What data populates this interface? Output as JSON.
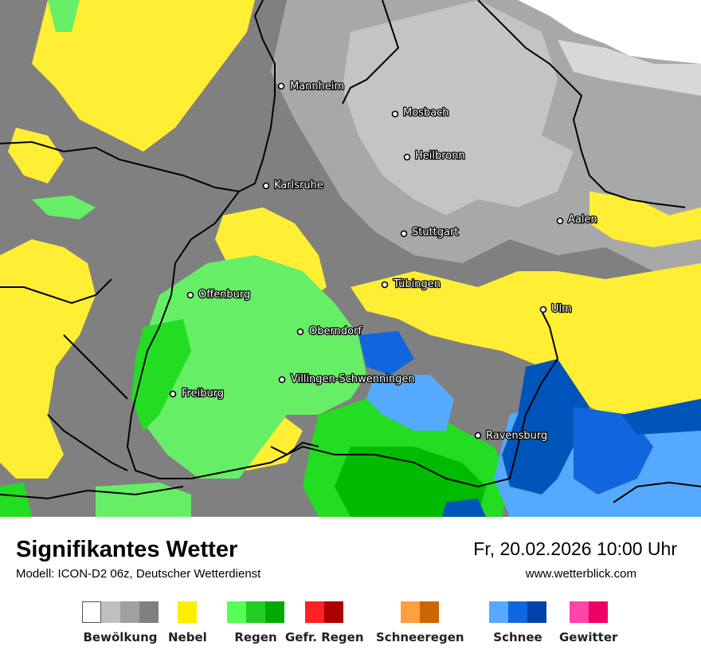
{
  "header": {
    "title": "Signifikantes Wetter",
    "model": "Modell: ICON-D2 06z, Deutscher Wetterdienst",
    "datetime": "Fr, 20.02.2026 10:00 Uhr",
    "website": "www.wetterblick.com"
  },
  "cities": [
    {
      "name": "Mannheim"
    },
    {
      "name": "Mosbach"
    },
    {
      "name": "Heilbronn"
    },
    {
      "name": "Karlsruhe"
    },
    {
      "name": "Aalen"
    },
    {
      "name": "Stuttgart"
    },
    {
      "name": "Tübingen"
    },
    {
      "name": "Offenburg"
    },
    {
      "name": "Ulm"
    },
    {
      "name": "Oberndorf"
    },
    {
      "name": "Villingen-Schwenningen"
    },
    {
      "name": "Freiburg"
    },
    {
      "name": "Ravensburg"
    }
  ],
  "legend": [
    {
      "label": "Bewölkung",
      "colors": [
        "#ffffff",
        "#c0c0c0",
        "#a0a0a0",
        "#808080"
      ]
    },
    {
      "label": "Nebel",
      "colors": [
        "#ffee00"
      ]
    },
    {
      "label": "Regen",
      "colors": [
        "#55ff55",
        "#22cc22",
        "#00aa00"
      ]
    },
    {
      "label": "Gefr. Regen",
      "colors": [
        "#ff2222",
        "#aa0000"
      ]
    },
    {
      "label": "Schneeregen",
      "colors": [
        "#ffa040",
        "#cc6600"
      ]
    },
    {
      "label": "Schnee",
      "colors": [
        "#55aaff",
        "#1166dd",
        "#0044aa"
      ]
    },
    {
      "label": "Gewitter",
      "colors": [
        "#ff44aa",
        "#ee0066"
      ]
    }
  ],
  "map_colors": {
    "cloud_light": "#d0d0d0",
    "cloud_mid": "#b0b0b0",
    "cloud_dark": "#808080",
    "fog": "#ffff66",
    "rain_light": "#66ee66",
    "rain_mid": "#22dd22",
    "rain_dark": "#00bb00",
    "snow_light": "#55aaff",
    "snow_dark": "#0055bb",
    "border": "#000000"
  }
}
